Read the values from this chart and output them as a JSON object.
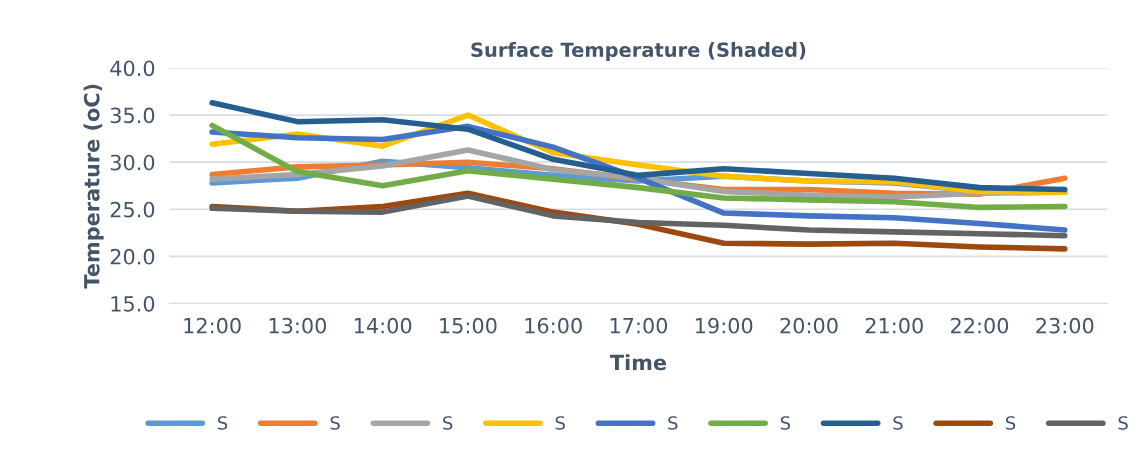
{
  "chart_data": {
    "type": "line",
    "title": "Surface Temperature (Shaded)",
    "xlabel": "Time",
    "ylabel": "Temperature (oC)",
    "categories": [
      "12:00",
      "13:00",
      "14:00",
      "15:00",
      "16:00",
      "17:00",
      "19:00",
      "20:00",
      "21:00",
      "22:00",
      "23:00"
    ],
    "series": [
      {
        "name": "S",
        "color": "#5b9bd5",
        "values": [
          27.8,
          28.3,
          30.1,
          29.4,
          28.6,
          28.0,
          28.5,
          28.0,
          27.8,
          26.9,
          26.8
        ]
      },
      {
        "name": "S",
        "color": "#ed7d31",
        "values": [
          28.7,
          29.5,
          29.7,
          30.0,
          29.3,
          28.2,
          27.1,
          27.1,
          26.7,
          26.6,
          28.3
        ]
      },
      {
        "name": "S",
        "color": "#a5a5a5",
        "values": [
          28.2,
          28.7,
          29.6,
          31.3,
          29.2,
          28.3,
          26.9,
          26.5,
          26.3,
          26.7,
          26.8
        ]
      },
      {
        "name": "S",
        "color": "#ffc000",
        "values": [
          31.9,
          33.0,
          31.7,
          35.0,
          31.0,
          29.7,
          28.5,
          28.0,
          27.9,
          26.9,
          26.8
        ]
      },
      {
        "name": "S",
        "color": "#4472c4",
        "values": [
          33.2,
          32.6,
          32.4,
          33.8,
          31.6,
          28.3,
          24.6,
          24.3,
          24.1,
          23.5,
          22.8
        ]
      },
      {
        "name": "S",
        "color": "#70ad47",
        "values": [
          33.9,
          29.0,
          27.5,
          29.1,
          28.2,
          27.3,
          26.2,
          26.0,
          25.8,
          25.2,
          25.3
        ]
      },
      {
        "name": "S",
        "color": "#255e91",
        "values": [
          36.3,
          34.3,
          34.5,
          33.5,
          30.3,
          28.6,
          29.3,
          28.8,
          28.3,
          27.3,
          27.1
        ]
      },
      {
        "name": "S",
        "color": "#9e480e",
        "values": [
          25.3,
          24.8,
          25.3,
          26.7,
          24.7,
          23.4,
          21.4,
          21.3,
          21.4,
          21.0,
          20.8
        ]
      },
      {
        "name": "S",
        "color": "#636363",
        "values": [
          25.1,
          24.8,
          24.7,
          26.4,
          24.3,
          23.6,
          23.3,
          22.8,
          22.6,
          22.4,
          22.2
        ]
      }
    ],
    "ylim": [
      15,
      40
    ],
    "yticks": [
      {
        "value": 15,
        "label": "15.0"
      },
      {
        "value": 20,
        "label": "20.0"
      },
      {
        "value": 25,
        "label": "25.0"
      },
      {
        "value": 30,
        "label": "30.0"
      },
      {
        "value": 35,
        "label": "35.0"
      },
      {
        "value": 40,
        "label": "40.0"
      }
    ],
    "grid": "y",
    "legend": "bottom",
    "marker": "none",
    "line_style": "solid"
  }
}
